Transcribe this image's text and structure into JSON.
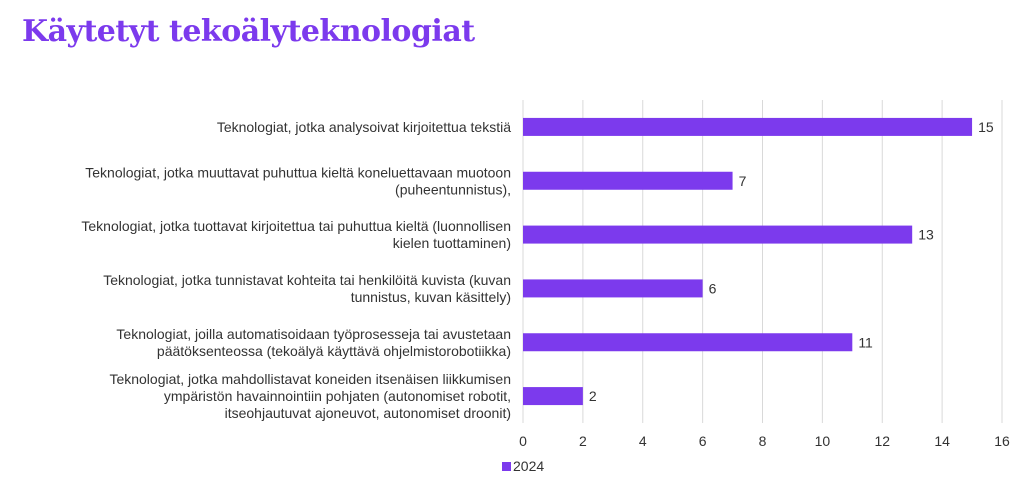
{
  "page": {
    "title": "Käytetyt tekoälyteknologiat"
  },
  "colors": {
    "title": "#7c3aed",
    "bar": "#7c3aed",
    "grid": "#d9d9d9",
    "text": "#333333"
  },
  "chart_data": {
    "type": "bar",
    "orientation": "horizontal",
    "categories": [
      [
        "Teknologiat, jotka analysoivat kirjoitettua tekstiä"
      ],
      [
        "Teknologiat, jotka muuttavat puhuttua kieltä koneluettavaan muotoon",
        "(puheentunnistus),"
      ],
      [
        "Teknologiat, jotka tuottavat kirjoitettua tai puhuttua kieltä (luonnollisen",
        "kielen tuottaminen)"
      ],
      [
        "Teknologiat, jotka tunnistavat kohteita tai henkilöitä kuvista (kuvan",
        "tunnistus, kuvan käsittely)"
      ],
      [
        "Teknologiat, joilla automatisoidaan työprosesseja tai avustetaan",
        "päätöksenteossa (tekoälyä käyttävä ohjelmistorobotiikka)"
      ],
      [
        "Teknologiat, jotka mahdollistavat koneiden itsenäisen liikkumisen",
        "ympäristön havainnointiin pohjaten (autonomiset robotit,",
        "itseohjautuvat ajoneuvot, autonomiset droonit)"
      ]
    ],
    "series": [
      {
        "name": "2024",
        "values": [
          15,
          7,
          13,
          6,
          11,
          2
        ]
      }
    ],
    "xlim": [
      0,
      16
    ],
    "xticks": [
      0,
      2,
      4,
      6,
      8,
      10,
      12,
      14,
      16
    ],
    "grid": "vertical",
    "legend": "bottom-left",
    "data_labels": true
  }
}
